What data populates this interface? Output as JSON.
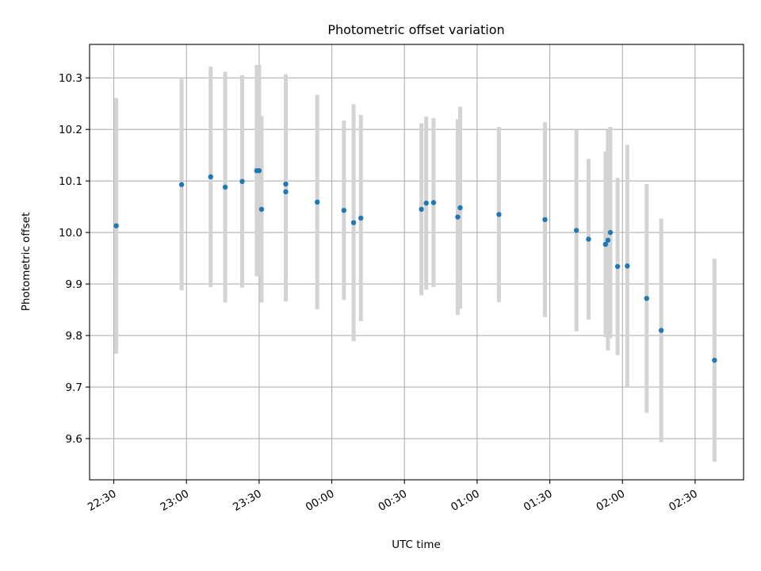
{
  "chart_data": {
    "type": "scatter",
    "title": "Photometric offset variation",
    "xlabel": "UTC time",
    "ylabel": "Photometric offset",
    "x_unit": "UTC",
    "xlim": [
      "22:20",
      "02:50"
    ],
    "ylim": [
      9.52,
      10.365
    ],
    "grid": true,
    "x_ticks": [
      "22:30",
      "23:00",
      "23:30",
      "00:00",
      "00:30",
      "01:00",
      "01:30",
      "02:00",
      "02:30"
    ],
    "y_ticks": [
      "9.6",
      "9.7",
      "9.8",
      "9.9",
      "10.0",
      "10.1",
      "10.2",
      "10.3"
    ],
    "colors": {
      "point": "#1f77b4",
      "errorbar": "#d3d3d3",
      "grid": "#b0b0b0"
    },
    "points": [
      {
        "x": "22:31",
        "y": 10.013,
        "err": 0.248
      },
      {
        "x": "22:58",
        "y": 10.093,
        "err": 0.205
      },
      {
        "x": "23:10",
        "y": 10.108,
        "err": 0.214
      },
      {
        "x": "23:16",
        "y": 10.088,
        "err": 0.224
      },
      {
        "x": "23:23",
        "y": 10.099,
        "err": 0.206
      },
      {
        "x": "23:29",
        "y": 10.12,
        "err": 0.205
      },
      {
        "x": "23:30",
        "y": 10.12,
        "err": 0.205
      },
      {
        "x": "23:31",
        "y": 10.045,
        "err": 0.181
      },
      {
        "x": "23:41",
        "y": 10.094,
        "err": 0.213
      },
      {
        "x": "23:41",
        "y": 10.079,
        "err": 0.213
      },
      {
        "x": "23:54",
        "y": 10.059,
        "err": 0.208
      },
      {
        "x": "00:05",
        "y": 10.043,
        "err": 0.174
      },
      {
        "x": "00:09",
        "y": 10.019,
        "err": 0.23
      },
      {
        "x": "00:12",
        "y": 10.028,
        "err": 0.2
      },
      {
        "x": "00:37",
        "y": 10.045,
        "err": 0.167
      },
      {
        "x": "00:39",
        "y": 10.057,
        "err": 0.168
      },
      {
        "x": "00:42",
        "y": 10.058,
        "err": 0.164
      },
      {
        "x": "00:52",
        "y": 10.03,
        "err": 0.19
      },
      {
        "x": "00:53",
        "y": 10.048,
        "err": 0.196
      },
      {
        "x": "01:09",
        "y": 10.035,
        "err": 0.17
      },
      {
        "x": "01:28",
        "y": 10.025,
        "err": 0.189
      },
      {
        "x": "01:41",
        "y": 10.004,
        "err": 0.196
      },
      {
        "x": "01:46",
        "y": 9.987,
        "err": 0.156
      },
      {
        "x": "01:53",
        "y": 9.977,
        "err": 0.18
      },
      {
        "x": "01:54",
        "y": 9.985,
        "err": 0.214
      },
      {
        "x": "01:55",
        "y": 10.0,
        "err": 0.205
      },
      {
        "x": "01:58",
        "y": 9.934,
        "err": 0.172
      },
      {
        "x": "02:02",
        "y": 9.935,
        "err": 0.235
      },
      {
        "x": "02:10",
        "y": 9.872,
        "err": 0.222
      },
      {
        "x": "02:16",
        "y": 9.81,
        "err": 0.217
      },
      {
        "x": "02:38",
        "y": 9.752,
        "err": 0.197
      }
    ]
  }
}
